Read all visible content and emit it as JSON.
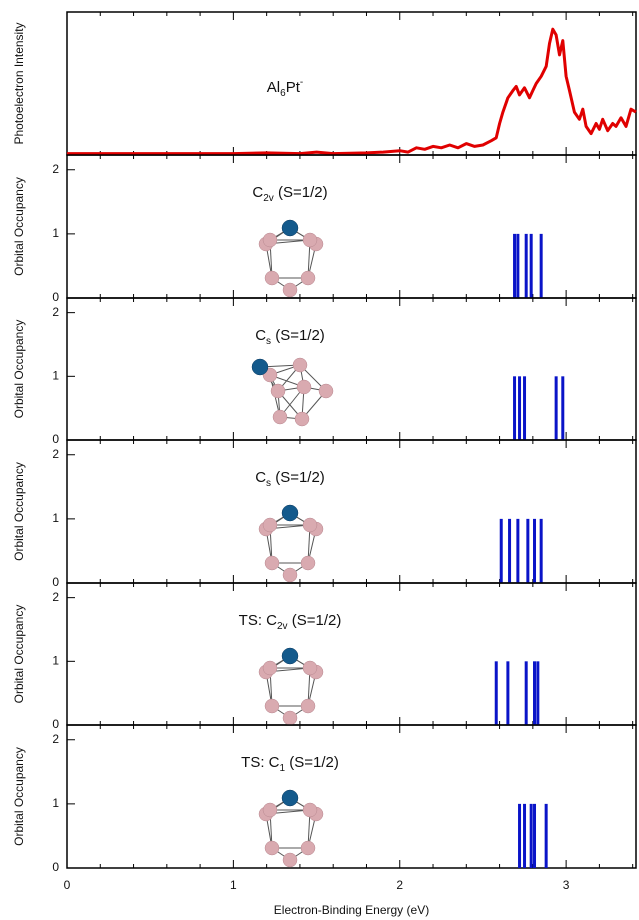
{
  "chart_data": [
    {
      "type": "line",
      "color": "#e00000",
      "ylabel": "Photoelectron Intensity",
      "label": [
        {
          "text": "Al"
        },
        {
          "text": "6",
          "sub": true
        },
        {
          "text": "Pt"
        },
        {
          "text": "-",
          "sup": true
        }
      ],
      "x": [
        0,
        0.2,
        0.4,
        0.6,
        0.8,
        1.0,
        1.2,
        1.4,
        1.5,
        1.6,
        1.8,
        1.9,
        2.0,
        2.05,
        2.1,
        2.15,
        2.2,
        2.25,
        2.3,
        2.35,
        2.4,
        2.45,
        2.5,
        2.55,
        2.58,
        2.6,
        2.62,
        2.65,
        2.68,
        2.7,
        2.72,
        2.75,
        2.78,
        2.8,
        2.82,
        2.85,
        2.88,
        2.9,
        2.92,
        2.94,
        2.96,
        2.98,
        3.0,
        3.02,
        3.05,
        3.08,
        3.1,
        3.12,
        3.15,
        3.18,
        3.2,
        3.22,
        3.25,
        3.28,
        3.3,
        3.33,
        3.36,
        3.39,
        3.42
      ],
      "values": [
        0.01,
        0.01,
        0.01,
        0.01,
        0.01,
        0.01,
        0.015,
        0.01,
        0.02,
        0.01,
        0.015,
        0.02,
        0.03,
        0.02,
        0.05,
        0.04,
        0.06,
        0.05,
        0.07,
        0.05,
        0.08,
        0.06,
        0.07,
        0.1,
        0.12,
        0.22,
        0.3,
        0.4,
        0.45,
        0.48,
        0.42,
        0.47,
        0.4,
        0.45,
        0.5,
        0.55,
        0.62,
        0.78,
        0.88,
        0.84,
        0.7,
        0.8,
        0.55,
        0.45,
        0.3,
        0.25,
        0.32,
        0.2,
        0.15,
        0.22,
        0.18,
        0.25,
        0.17,
        0.22,
        0.2,
        0.26,
        0.2,
        0.32,
        0.3
      ],
      "xlim": [
        0,
        3.42
      ],
      "ylim": [
        0,
        1
      ],
      "xticks": [
        0,
        1,
        2,
        3
      ],
      "xminorticks": [
        0.2,
        0.4,
        0.6,
        0.8,
        1.2,
        1.4,
        1.6,
        1.8,
        2.2,
        2.4,
        2.6,
        2.8,
        3.2,
        3.4
      ]
    },
    {
      "type": "bar",
      "color": "#0a14c8",
      "ylabel": "Orbital Occupancy",
      "label": [
        {
          "text": "C"
        },
        {
          "text": "2v",
          "sub": true
        },
        {
          "text": " (S=1/2)"
        }
      ],
      "x": [
        2.69,
        2.71,
        2.76,
        2.79,
        2.85
      ],
      "values": [
        1,
        1,
        1,
        1,
        1
      ],
      "xlim": [
        0,
        3.42
      ],
      "ylim": [
        0,
        2.23
      ],
      "yticks": [
        0,
        1,
        2
      ],
      "xticks": [
        0,
        1,
        2,
        3
      ],
      "xminorticks": [
        0.2,
        0.4,
        0.6,
        0.8,
        1.2,
        1.4,
        1.6,
        1.8,
        2.2,
        2.4,
        2.6,
        2.8,
        3.2,
        3.4
      ]
    },
    {
      "type": "bar",
      "color": "#0a14c8",
      "ylabel": "Orbital Occupancy",
      "label": [
        {
          "text": "C"
        },
        {
          "text": "s",
          "sub": true
        },
        {
          "text": " (S=1/2)"
        }
      ],
      "x": [
        2.69,
        2.72,
        2.75,
        2.94,
        2.98
      ],
      "values": [
        1,
        1,
        1,
        1,
        1
      ],
      "xlim": [
        0,
        3.42
      ],
      "ylim": [
        0,
        2.23
      ],
      "yticks": [
        0,
        1,
        2
      ],
      "xticks": [
        0,
        1,
        2,
        3
      ],
      "xminorticks": [
        0.2,
        0.4,
        0.6,
        0.8,
        1.2,
        1.4,
        1.6,
        1.8,
        2.2,
        2.4,
        2.6,
        2.8,
        3.2,
        3.4
      ]
    },
    {
      "type": "bar",
      "color": "#0a14c8",
      "ylabel": "Orbital Occupancy",
      "label": [
        {
          "text": "C"
        },
        {
          "text": "s",
          "sub": true
        },
        {
          "text": " (S=1/2)"
        }
      ],
      "x": [
        2.61,
        2.66,
        2.71,
        2.77,
        2.81,
        2.85
      ],
      "values": [
        1,
        1,
        1,
        1,
        1,
        1
      ],
      "xlim": [
        0,
        3.42
      ],
      "ylim": [
        0,
        2.23
      ],
      "yticks": [
        0,
        1,
        2
      ],
      "xticks": [
        0,
        1,
        2,
        3
      ],
      "xminorticks": [
        0.2,
        0.4,
        0.6,
        0.8,
        1.2,
        1.4,
        1.6,
        1.8,
        2.2,
        2.4,
        2.6,
        2.8,
        3.2,
        3.4
      ]
    },
    {
      "type": "bar",
      "color": "#0a14c8",
      "ylabel": "Orbital Occupancy",
      "label": [
        {
          "text": "TS: C"
        },
        {
          "text": "2v",
          "sub": true
        },
        {
          "text": " (S=1/2)"
        }
      ],
      "x": [
        2.58,
        2.65,
        2.76,
        2.81,
        2.83
      ],
      "values": [
        1,
        1,
        1,
        1,
        1
      ],
      "xlim": [
        0,
        3.42
      ],
      "ylim": [
        0,
        2.23
      ],
      "yticks": [
        0,
        1,
        2
      ],
      "xticks": [
        0,
        1,
        2,
        3
      ],
      "xminorticks": [
        0.2,
        0.4,
        0.6,
        0.8,
        1.2,
        1.4,
        1.6,
        1.8,
        2.2,
        2.4,
        2.6,
        2.8,
        3.2,
        3.4
      ]
    },
    {
      "type": "bar",
      "color": "#0a14c8",
      "ylabel": "Orbital Occupancy",
      "label": [
        {
          "text": "TS: C"
        },
        {
          "text": "1",
          "sub": true
        },
        {
          "text": " (S=1/2)"
        }
      ],
      "x": [
        2.72,
        2.75,
        2.79,
        2.81,
        2.88
      ],
      "values": [
        1,
        1,
        1,
        1,
        1
      ],
      "xlim": [
        0,
        3.42
      ],
      "ylim": [
        0,
        2.23
      ],
      "yticks": [
        0,
        1,
        2
      ],
      "xticks": [
        0,
        1,
        2,
        3
      ],
      "xminorticks": [
        0.2,
        0.4,
        0.6,
        0.8,
        1.2,
        1.4,
        1.6,
        1.8,
        2.2,
        2.4,
        2.6,
        2.8,
        3.2,
        3.4
      ],
      "xlabel": "Electron-Binding Energy (eV)"
    }
  ]
}
